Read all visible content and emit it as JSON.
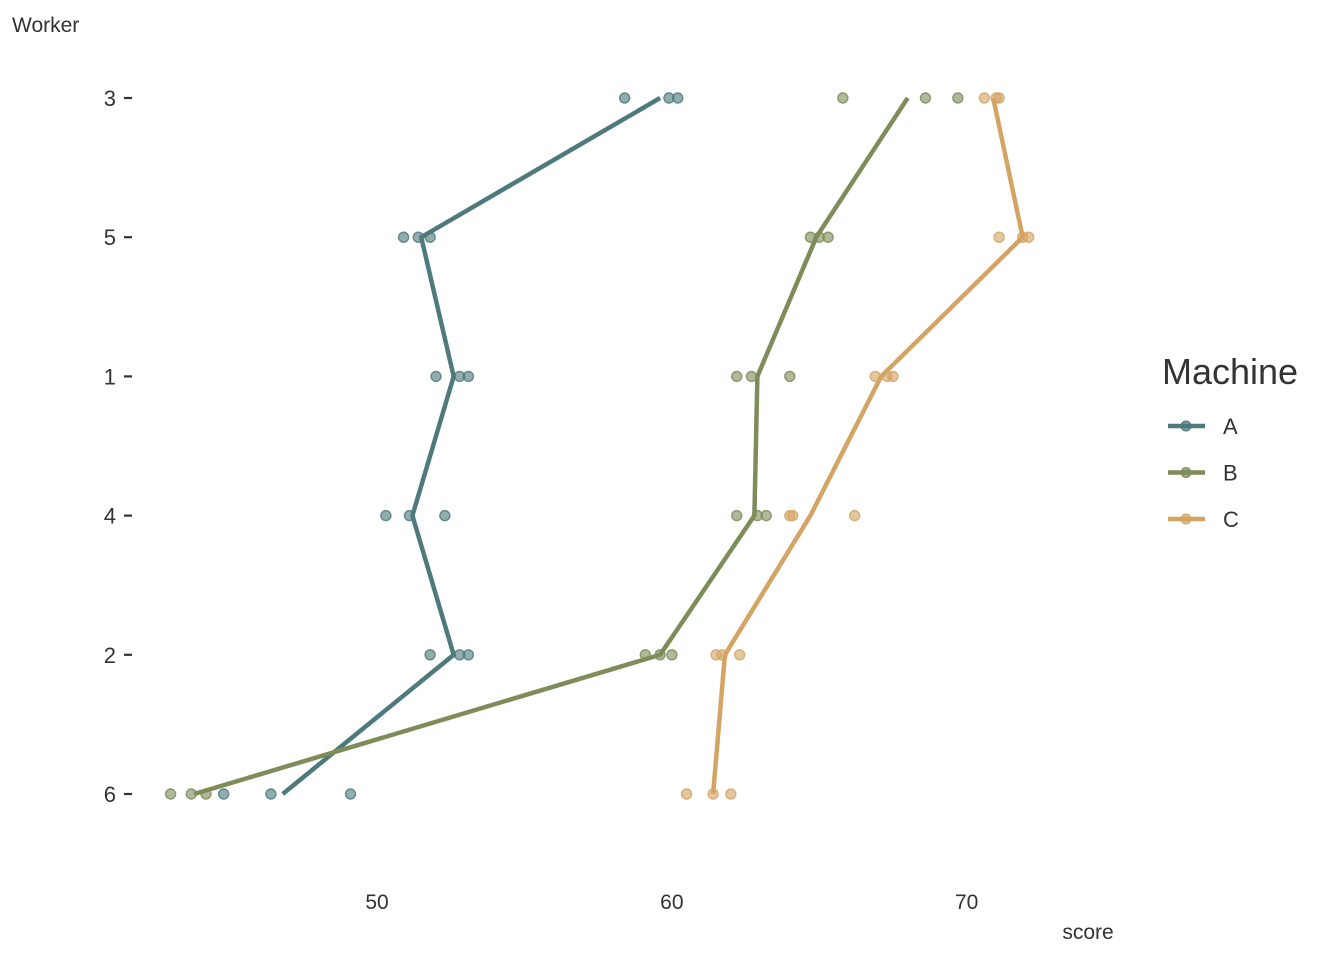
{
  "chart_data": {
    "type": "line",
    "xlabel": "score",
    "ylabel": "Worker",
    "xlim": [
      42.3,
      75.2
    ],
    "x_ticks": [
      "50",
      "60",
      "70"
    ],
    "x_tick_values": [
      50,
      60,
      70
    ],
    "categories": [
      "3",
      "5",
      "1",
      "4",
      "2",
      "6"
    ],
    "grid": false,
    "legend": {
      "title": "Machine",
      "placement": "right",
      "entries": [
        "A",
        "B",
        "C"
      ]
    },
    "series": [
      {
        "name": "A",
        "color": "#4e7a7d",
        "means": [
          59.6,
          51.5,
          52.6,
          51.2,
          52.6,
          46.8
        ],
        "points": [
          [
            58.4,
            59.9,
            60.2
          ],
          [
            50.9,
            51.4,
            51.8
          ],
          [
            52.0,
            52.8,
            53.1
          ],
          [
            50.3,
            51.1,
            52.3
          ],
          [
            51.8,
            52.8,
            53.1
          ],
          [
            44.8,
            46.4,
            49.1
          ]
        ]
      },
      {
        "name": "B",
        "color": "#7e8c5a",
        "means": [
          68.0,
          64.9,
          62.9,
          62.8,
          59.6,
          43.8
        ],
        "points": [
          [
            65.8,
            68.6,
            69.7
          ],
          [
            64.7,
            65.0,
            65.3
          ],
          [
            62.2,
            62.7,
            64.0
          ],
          [
            62.2,
            62.9,
            63.2
          ],
          [
            59.1,
            59.6,
            60.0
          ],
          [
            43.0,
            43.7,
            44.2
          ]
        ]
      },
      {
        "name": "C",
        "color": "#d3a464",
        "means": [
          70.9,
          71.9,
          67.1,
          64.7,
          61.8,
          61.4
        ],
        "points": [
          [
            70.6,
            71.0,
            71.1
          ],
          [
            71.1,
            71.9,
            72.1
          ],
          [
            66.9,
            67.3,
            67.5
          ],
          [
            64.0,
            64.1,
            66.2
          ],
          [
            61.5,
            61.7,
            62.3
          ],
          [
            60.5,
            61.4,
            62.0
          ]
        ]
      }
    ]
  }
}
